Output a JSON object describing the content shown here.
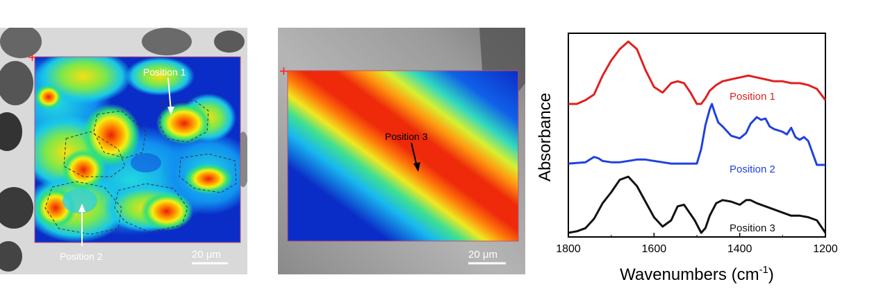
{
  "panels": {
    "a": {
      "labels": [
        {
          "text": "Position 1",
          "color": "#ffffff"
        },
        {
          "text": "Position 2",
          "color": "#ffffff"
        }
      ],
      "scalebar": "20 μm",
      "marker": "+"
    },
    "b": {
      "labels": [
        {
          "text": "Position 3",
          "color": "#000000"
        }
      ],
      "scalebar": "20 μm",
      "marker": "+"
    }
  },
  "colors": {
    "map_low": "#0a2dc8",
    "map_high": "#f03a0a",
    "marker": "#ff2020",
    "frame": "#c05070"
  },
  "chart_data": {
    "type": "line",
    "title": "",
    "xlabel": "Wavenumbers (cm⁻¹)",
    "ylabel": "Absorbance",
    "xlim": [
      1800,
      1200
    ],
    "x_reversed": true,
    "ylim": [
      0,
      100
    ],
    "yticks_shown": false,
    "xticks": [
      1800,
      1600,
      1400,
      1200
    ],
    "xtick_labels": [
      "1800",
      "1600",
      "1400",
      "1200"
    ],
    "series": [
      {
        "name": "Position 1",
        "color": "#e02020",
        "x": [
          1800,
          1780,
          1760,
          1740,
          1720,
          1700,
          1680,
          1660,
          1640,
          1620,
          1600,
          1580,
          1560,
          1545,
          1530,
          1515,
          1500,
          1490,
          1480,
          1470,
          1455,
          1440,
          1420,
          1400,
          1380,
          1360,
          1340,
          1320,
          1300,
          1280,
          1260,
          1240,
          1220,
          1200
        ],
        "y": [
          67,
          67,
          69,
          72,
          82,
          90,
          96,
          100,
          96,
          85,
          76,
          73,
          78,
          79,
          78,
          73,
          67,
          67,
          70,
          74,
          77,
          79,
          80,
          81,
          82,
          81,
          80,
          79,
          79,
          78,
          78,
          77,
          75,
          69
        ]
      },
      {
        "name": "Position 2",
        "color": "#2040e0",
        "x": [
          1800,
          1760,
          1740,
          1730,
          1720,
          1700,
          1680,
          1660,
          1640,
          1620,
          1600,
          1580,
          1560,
          1540,
          1520,
          1500,
          1490,
          1480,
          1470,
          1465,
          1458,
          1450,
          1440,
          1420,
          1400,
          1385,
          1375,
          1360,
          1350,
          1340,
          1330,
          1320,
          1300,
          1290,
          1280,
          1270,
          1260,
          1250,
          1240,
          1230,
          1220,
          1200
        ],
        "y": [
          46,
          47,
          51,
          50,
          48,
          47,
          47,
          48,
          49,
          49,
          48,
          47,
          46,
          46,
          46,
          46,
          57,
          75,
          87,
          91,
          84,
          77,
          74,
          67,
          65,
          69,
          76,
          81,
          79,
          80,
          74,
          72,
          70,
          68,
          73,
          66,
          64,
          66,
          63,
          54,
          45,
          45
        ]
      },
      {
        "name": "Position 3",
        "color": "#111111",
        "x": [
          1800,
          1780,
          1760,
          1740,
          1720,
          1700,
          1680,
          1660,
          1640,
          1620,
          1600,
          1580,
          1560,
          1545,
          1530,
          1520,
          1505,
          1490,
          1480,
          1470,
          1455,
          1440,
          1420,
          1400,
          1385,
          1375,
          1360,
          1340,
          1320,
          1300,
          1280,
          1260,
          1240,
          1220,
          1200
        ],
        "y": [
          6,
          7,
          9,
          15,
          25,
          32,
          40,
          42,
          36,
          26,
          16,
          10,
          14,
          23,
          24,
          20,
          14,
          6,
          9,
          17,
          25,
          27,
          26,
          24,
          27,
          27,
          25,
          23,
          21,
          19,
          17,
          17,
          16,
          14,
          6
        ]
      }
    ],
    "legend": [
      {
        "text": "Position 1",
        "color": "#e02020"
      },
      {
        "text": "Position 2",
        "color": "#2040e0"
      },
      {
        "text": "Position 3",
        "color": "#111111"
      }
    ]
  }
}
